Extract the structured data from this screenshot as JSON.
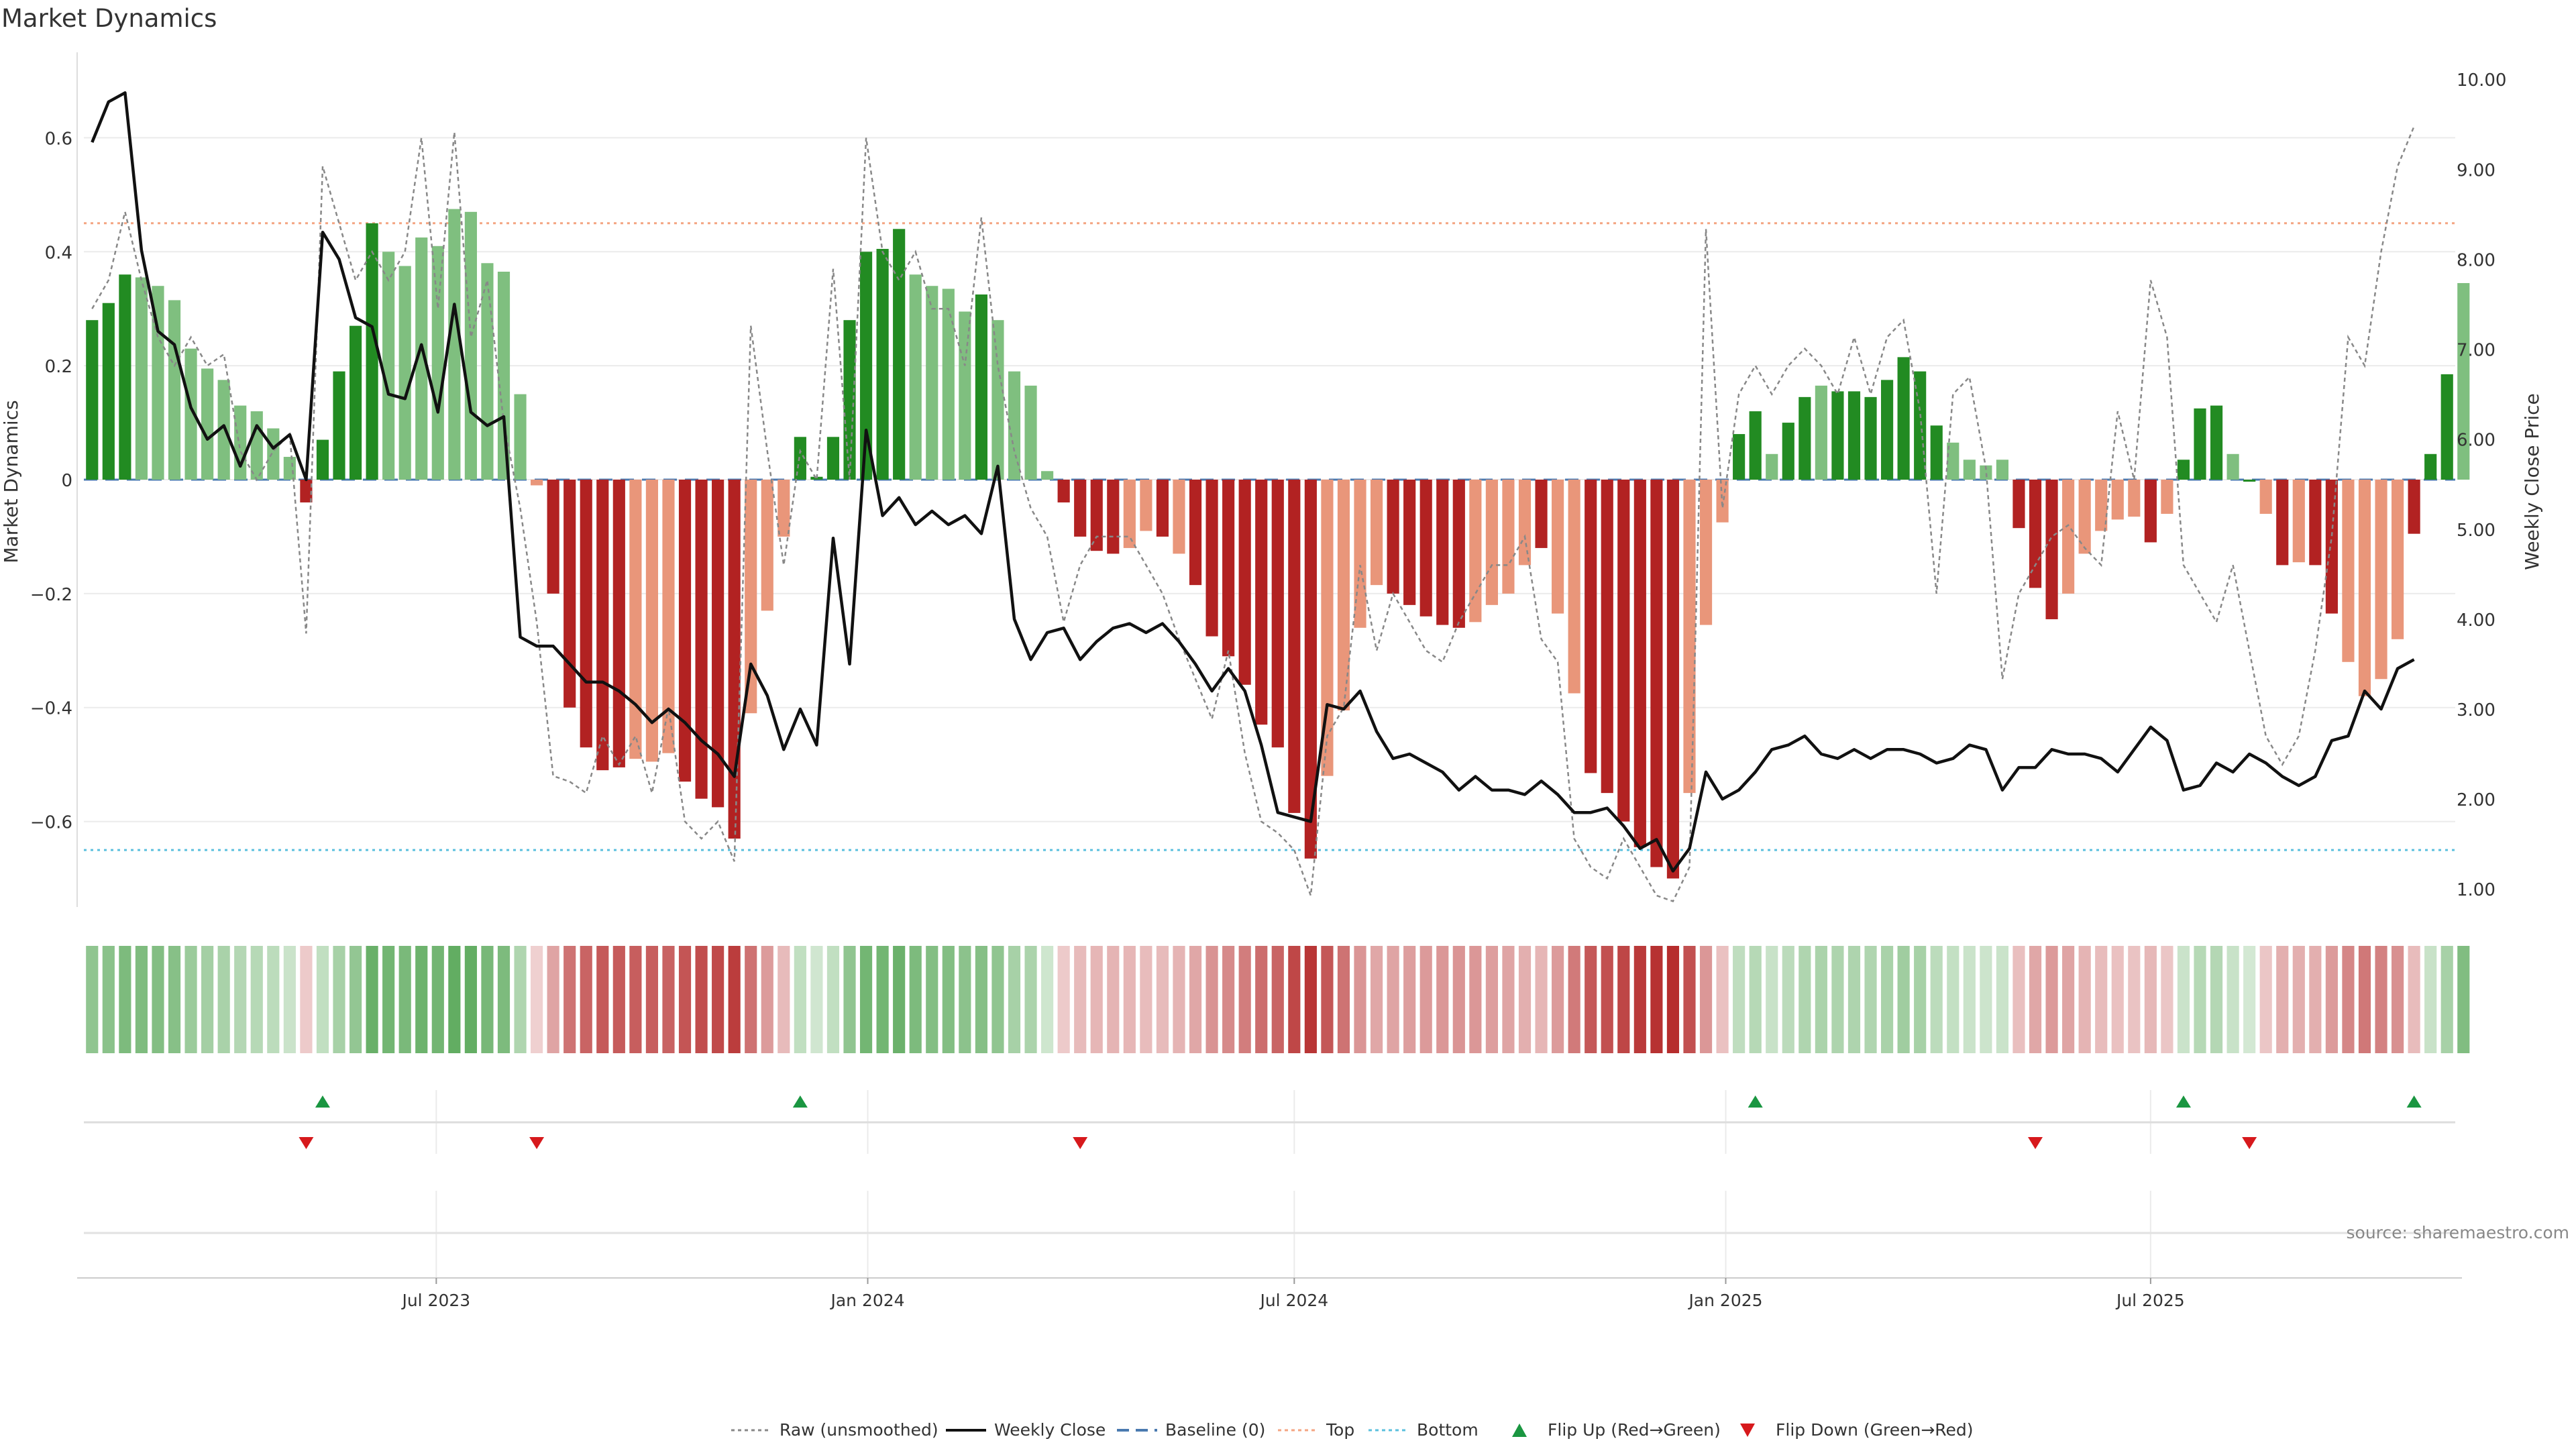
{
  "chart_data": {
    "type": "bar",
    "title": "Market Dynamics",
    "ylabel_left": "Market Dynamics",
    "ylabel_right": "Weekly Close Price",
    "source": "source: sharemaestro.com",
    "ylim_left": [
      -0.75,
      0.75
    ],
    "ylim_right": [
      0.8,
      10.3
    ],
    "y_ticks_left": [
      0.6,
      0.4,
      0.2,
      0,
      -0.2,
      -0.4,
      -0.6
    ],
    "y_tick_labels_left": [
      "0.6",
      "0.4",
      "0.2",
      "0",
      "−0.2",
      "−0.4",
      "−0.6"
    ],
    "y_ticks_right": [
      10,
      9,
      8,
      7,
      6,
      5,
      4,
      3,
      2,
      1
    ],
    "y_tick_labels_right": [
      "10.00",
      "9.00",
      "8.00",
      "7.00",
      "6.00",
      "5.00",
      "4.00",
      "3.00",
      "2.00",
      "1.00"
    ],
    "x_range_weeks": [
      0,
      144
    ],
    "x_ticks": [
      {
        "label": "Jul 2023",
        "week": 21.4
      },
      {
        "label": "Jan 2024",
        "week": 47.6
      },
      {
        "label": "Jul 2024",
        "week": 73.5
      },
      {
        "label": "Jan 2025",
        "week": 99.7
      },
      {
        "label": "Jul 2025",
        "week": 125.5
      }
    ],
    "top_threshold": 0.45,
    "bottom_threshold": -0.65,
    "baseline": 0,
    "dynamics": [
      0.28,
      0.31,
      0.36,
      0.355,
      0.34,
      0.315,
      0.23,
      0.195,
      0.175,
      0.13,
      0.12,
      0.09,
      0.04,
      -0.04,
      0.07,
      0.19,
      0.27,
      0.45,
      0.4,
      0.375,
      0.425,
      0.41,
      0.475,
      0.47,
      0.38,
      0.365,
      0.15,
      -0.01,
      -0.2,
      -0.4,
      -0.47,
      -0.51,
      -0.505,
      -0.49,
      -0.495,
      -0.48,
      -0.53,
      -0.56,
      -0.575,
      -0.63,
      -0.41,
      -0.23,
      -0.1,
      0.075,
      0.005,
      0.075,
      0.28,
      0.4,
      0.405,
      0.44,
      0.36,
      0.34,
      0.335,
      0.295,
      0.325,
      0.28,
      0.19,
      0.165,
      0.015,
      -0.04,
      -0.1,
      -0.125,
      -0.13,
      -0.12,
      -0.09,
      -0.1,
      -0.13,
      -0.185,
      -0.275,
      -0.31,
      -0.36,
      -0.43,
      -0.47,
      -0.585,
      -0.665,
      -0.52,
      -0.405,
      -0.26,
      -0.185,
      -0.2,
      -0.22,
      -0.24,
      -0.255,
      -0.26,
      -0.25,
      -0.22,
      -0.2,
      -0.15,
      -0.12,
      -0.235,
      -0.375,
      -0.515,
      -0.55,
      -0.6,
      -0.645,
      -0.68,
      -0.7,
      -0.55,
      -0.255,
      -0.075,
      0.08,
      0.12,
      0.045,
      0.1,
      0.145,
      0.165,
      0.155,
      0.155,
      0.145,
      0.175,
      0.215,
      0.19,
      0.095,
      0.065,
      0.035,
      0.025,
      0.035,
      -0.085,
      -0.19,
      -0.245,
      -0.2,
      -0.13,
      -0.09,
      -0.07,
      -0.065,
      -0.11,
      -0.06,
      0.035,
      0.125,
      0.13,
      0.045,
      0.0,
      -0.06,
      -0.15,
      -0.145,
      -0.15,
      -0.235,
      -0.32,
      -0.38,
      -0.35,
      -0.28,
      -0.095,
      0.045,
      0.185,
      0.345
    ],
    "dynamics_dark_indices": [
      0,
      1,
      2,
      13,
      14,
      15,
      16,
      17,
      28,
      29,
      30,
      31,
      32,
      36,
      37,
      38,
      39,
      43,
      44,
      45,
      46,
      47,
      48,
      49,
      54,
      59,
      60,
      61,
      62,
      65,
      67,
      68,
      69,
      70,
      71,
      72,
      73,
      74,
      79,
      80,
      81,
      82,
      83,
      88,
      91,
      92,
      93,
      94,
      95,
      96,
      100,
      101,
      103,
      104,
      106,
      107,
      108,
      109,
      110,
      111,
      112,
      117,
      118,
      119,
      125,
      127,
      128,
      129,
      131,
      133,
      135,
      136,
      141,
      142,
      143
    ],
    "weekly_close": [
      9.3,
      9.75,
      9.85,
      8.1,
      7.2,
      7.05,
      6.35,
      6.0,
      6.15,
      5.7,
      6.15,
      5.9,
      6.05,
      5.55,
      8.3,
      8.0,
      7.35,
      7.25,
      6.5,
      6.45,
      7.05,
      6.3,
      7.5,
      6.3,
      6.15,
      6.25,
      3.8,
      3.7,
      3.7,
      3.5,
      3.3,
      3.3,
      3.2,
      3.05,
      2.85,
      3.0,
      2.85,
      2.65,
      2.5,
      2.25,
      3.5,
      3.15,
      2.55,
      3.0,
      2.6,
      4.9,
      3.5,
      6.1,
      5.15,
      5.35,
      5.05,
      5.2,
      5.05,
      5.15,
      4.95,
      5.7,
      4.0,
      3.55,
      3.85,
      3.9,
      3.55,
      3.75,
      3.9,
      3.95,
      3.85,
      3.95,
      3.75,
      3.5,
      3.2,
      3.45,
      3.2,
      2.6,
      1.85,
      1.8,
      1.75,
      3.05,
      3.0,
      3.2,
      2.75,
      2.45,
      2.5,
      2.4,
      2.3,
      2.1,
      2.25,
      2.1,
      2.1,
      2.05,
      2.2,
      2.05,
      1.85,
      1.85,
      1.9,
      1.7,
      1.45,
      1.55,
      1.2,
      1.45,
      2.3,
      2.0,
      2.1,
      2.3,
      2.55,
      2.6,
      2.7,
      2.5,
      2.45,
      2.55,
      2.45,
      2.55,
      2.55,
      2.5,
      2.4,
      2.45,
      2.6,
      2.55,
      2.1,
      2.35,
      2.35,
      2.55,
      2.5,
      2.5,
      2.45,
      2.3,
      2.55,
      2.8,
      2.65,
      2.1,
      2.15,
      2.4,
      2.3,
      2.5,
      2.4,
      2.25,
      2.15,
      2.25,
      2.65,
      2.7,
      3.2,
      3.0,
      3.45,
      3.55
    ],
    "raw_unsmoothed": [
      0.3,
      0.35,
      0.47,
      0.35,
      0.25,
      0.2,
      0.25,
      0.2,
      0.22,
      0.05,
      0.0,
      0.05,
      0.08,
      -0.27,
      0.55,
      0.45,
      0.35,
      0.4,
      0.35,
      0.4,
      0.6,
      0.3,
      0.61,
      0.25,
      0.35,
      0.1,
      -0.05,
      -0.25,
      -0.52,
      -0.53,
      -0.55,
      -0.45,
      -0.5,
      -0.45,
      -0.55,
      -0.4,
      -0.6,
      -0.63,
      -0.6,
      -0.67,
      0.27,
      0.05,
      -0.15,
      0.05,
      0.0,
      0.37,
      0.0,
      0.6,
      0.4,
      0.35,
      0.4,
      0.3,
      0.3,
      0.2,
      0.46,
      0.2,
      0.05,
      -0.05,
      -0.1,
      -0.25,
      -0.15,
      -0.1,
      -0.1,
      -0.1,
      -0.15,
      -0.2,
      -0.28,
      -0.35,
      -0.42,
      -0.3,
      -0.48,
      -0.6,
      -0.62,
      -0.65,
      -0.73,
      -0.45,
      -0.4,
      -0.15,
      -0.3,
      -0.2,
      -0.25,
      -0.3,
      -0.32,
      -0.25,
      -0.2,
      -0.15,
      -0.15,
      -0.1,
      -0.28,
      -0.32,
      -0.63,
      -0.68,
      -0.7,
      -0.63,
      -0.68,
      -0.73,
      -0.74,
      -0.68,
      0.44,
      -0.05,
      0.15,
      0.2,
      0.15,
      0.2,
      0.23,
      0.2,
      0.15,
      0.25,
      0.15,
      0.25,
      0.28,
      0.12,
      -0.2,
      0.15,
      0.18,
      0.02,
      -0.35,
      -0.2,
      -0.15,
      -0.1,
      -0.08,
      -0.12,
      -0.15,
      0.12,
      0.0,
      0.35,
      0.25,
      -0.15,
      -0.2,
      -0.25,
      -0.15,
      -0.3,
      -0.45,
      -0.5,
      -0.45,
      -0.3,
      -0.1,
      0.25,
      0.2,
      0.4,
      0.55,
      0.62
    ],
    "legend": {
      "raw": "Raw (unsmoothed)",
      "close": "Weekly Close",
      "baseline": "Baseline (0)",
      "top": "Top",
      "bottom": "Bottom",
      "flip_up": "Flip Up (Red→Green)",
      "flip_down": "Flip Down (Green→Red)"
    },
    "flip_up_weeks": [
      14,
      43,
      101,
      127,
      141
    ],
    "flip_down_weeks": [
      13,
      27,
      60,
      118,
      131
    ],
    "colors": {
      "strong_green": "#228b22",
      "weak_green": "#7fbf7f",
      "strong_red": "#b22222",
      "weak_red": "#e9967a",
      "close_line": "#111111",
      "raw_line": "#888888",
      "baseline": "#4a7ab0",
      "top": "#f4a582",
      "bottom": "#5bc0de",
      "flip_up": "#1a9641",
      "flip_down": "#d7191c",
      "axis_text": "#333333",
      "grid": "#ebebeb"
    }
  }
}
